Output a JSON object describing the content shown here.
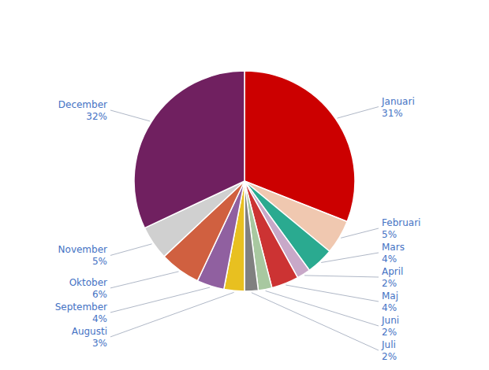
{
  "chart_data": {
    "type": "pie",
    "categories": [
      "Januari",
      "Februari",
      "Mars",
      "April",
      "Maj",
      "Juni",
      "Juli",
      "Augusti",
      "September",
      "Oktober",
      "November",
      "December"
    ],
    "values": [
      31,
      5,
      4,
      2,
      4,
      2,
      2,
      3,
      4,
      6,
      5,
      32
    ],
    "value_labels": [
      "31%",
      "5%",
      "4%",
      "2%",
      "4%",
      "2%",
      "2%",
      "3%",
      "4%",
      "6%",
      "5%",
      "32%"
    ],
    "colors": [
      "#cc0000",
      "#f0c8b0",
      "#2aaa90",
      "#c8a8c8",
      "#cc3333",
      "#a8c8a0",
      "#808080",
      "#e8c020",
      "#9060a0",
      "#d06040",
      "#d0d0d0",
      "#702060"
    ],
    "data_labels": true
  }
}
